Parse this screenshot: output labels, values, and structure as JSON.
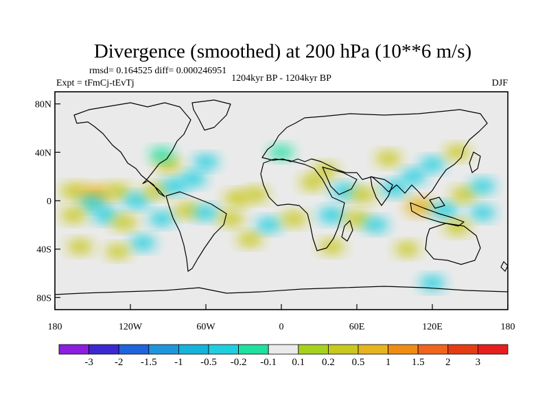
{
  "chart_data": {
    "type": "heatmap",
    "title": "Divergence (smoothed) at 200 hPa (10**6 m/s)",
    "stats_line": "rmsd= 0.164525 diff= 0.000246951",
    "experiment": "Expt = tFmCj-tEvTj",
    "period": "1204kyr BP - 1204kyr BP",
    "season": "DJF",
    "x_ticks": [
      "180",
      "120W",
      "60W",
      "0",
      "60E",
      "120E",
      "180"
    ],
    "x_tick_values": [
      -180,
      -120,
      -60,
      0,
      60,
      120,
      180
    ],
    "y_ticks": [
      "80N",
      "40N",
      "0",
      "40S",
      "80S"
    ],
    "y_tick_values": [
      80,
      40,
      0,
      -40,
      -80
    ],
    "xlim": [
      -180,
      180
    ],
    "ylim": [
      -90,
      90
    ],
    "colorbar": {
      "labels": [
        "-3",
        "-2",
        "-1.5",
        "-1",
        "-0.5",
        "-0.2",
        "-0.1",
        "0.1",
        "0.2",
        "0.5",
        "1",
        "1.5",
        "2",
        "3"
      ],
      "levels": [
        -3,
        -2,
        -1.5,
        -1,
        -0.5,
        -0.2,
        -0.1,
        0.1,
        0.2,
        0.5,
        1,
        1.5,
        2,
        3
      ],
      "colors": [
        "#8c1ee0",
        "#3c28d2",
        "#1e64dc",
        "#1e96dc",
        "#14b4dc",
        "#1ecfe0",
        "#1ee0a0",
        "#eaeaea",
        "#a6d21e",
        "#c8c81e",
        "#e6b41e",
        "#f08c14",
        "#f0641e",
        "#e63c14",
        "#e61e1e"
      ]
    },
    "anomaly_regions": [
      {
        "lon": -165,
        "lat": 8,
        "value": 0.35
      },
      {
        "lon": -148,
        "lat": 5,
        "value": 0.8
      },
      {
        "lon": -130,
        "lat": 8,
        "value": 0.3
      },
      {
        "lon": -150,
        "lat": -2,
        "value": -0.25
      },
      {
        "lon": -115,
        "lat": 0,
        "value": -0.35
      },
      {
        "lon": -100,
        "lat": 8,
        "value": 0.25
      },
      {
        "lon": -85,
        "lat": 12,
        "value": -0.3
      },
      {
        "lon": -70,
        "lat": 18,
        "value": -0.3
      },
      {
        "lon": -90,
        "lat": 30,
        "value": 0.25
      },
      {
        "lon": -60,
        "lat": 32,
        "value": -0.25
      },
      {
        "lon": -95,
        "lat": 38,
        "value": -0.2
      },
      {
        "lon": -165,
        "lat": -12,
        "value": 0.3
      },
      {
        "lon": -140,
        "lat": -12,
        "value": -0.3
      },
      {
        "lon": -125,
        "lat": -18,
        "value": 0.3
      },
      {
        "lon": -95,
        "lat": -15,
        "value": -0.25
      },
      {
        "lon": -110,
        "lat": -35,
        "value": -0.25
      },
      {
        "lon": -160,
        "lat": -38,
        "value": 0.25
      },
      {
        "lon": -130,
        "lat": -42,
        "value": 0.2
      },
      {
        "lon": -75,
        "lat": -8,
        "value": 0.3
      },
      {
        "lon": -60,
        "lat": -10,
        "value": -0.25
      },
      {
        "lon": -35,
        "lat": 2,
        "value": 0.35
      },
      {
        "lon": -20,
        "lat": 5,
        "value": 0.25
      },
      {
        "lon": -40,
        "lat": -15,
        "value": 0.3
      },
      {
        "lon": -25,
        "lat": -32,
        "value": 0.25
      },
      {
        "lon": -10,
        "lat": -20,
        "value": -0.25
      },
      {
        "lon": 10,
        "lat": -15,
        "value": 0.3
      },
      {
        "lon": 25,
        "lat": 15,
        "value": 0.3
      },
      {
        "lon": 35,
        "lat": 25,
        "value": 0.25
      },
      {
        "lon": 50,
        "lat": 8,
        "value": -0.3
      },
      {
        "lon": 65,
        "lat": 5,
        "value": 0.3
      },
      {
        "lon": 40,
        "lat": -12,
        "value": -0.35
      },
      {
        "lon": 60,
        "lat": -15,
        "value": 0.35
      },
      {
        "lon": 75,
        "lat": -20,
        "value": -0.25
      },
      {
        "lon": 90,
        "lat": 10,
        "value": -0.35
      },
      {
        "lon": 105,
        "lat": 20,
        "value": -0.3
      },
      {
        "lon": 120,
        "lat": 30,
        "value": -0.25
      },
      {
        "lon": 110,
        "lat": -5,
        "value": 0.6
      },
      {
        "lon": 130,
        "lat": -8,
        "value": -0.35
      },
      {
        "lon": 145,
        "lat": 5,
        "value": 0.3
      },
      {
        "lon": 160,
        "lat": -10,
        "value": -0.25
      },
      {
        "lon": 140,
        "lat": -22,
        "value": 0.3
      },
      {
        "lon": 160,
        "lat": 12,
        "value": -0.25
      },
      {
        "lon": 85,
        "lat": 35,
        "value": 0.25
      },
      {
        "lon": 0,
        "lat": 40,
        "value": -0.2
      },
      {
        "lon": 40,
        "lat": -38,
        "value": 0.25
      },
      {
        "lon": 100,
        "lat": -40,
        "value": 0.2
      },
      {
        "lon": 120,
        "lat": -68,
        "value": -0.25
      },
      {
        "lon": 140,
        "lat": 40,
        "value": 0.25
      }
    ]
  }
}
